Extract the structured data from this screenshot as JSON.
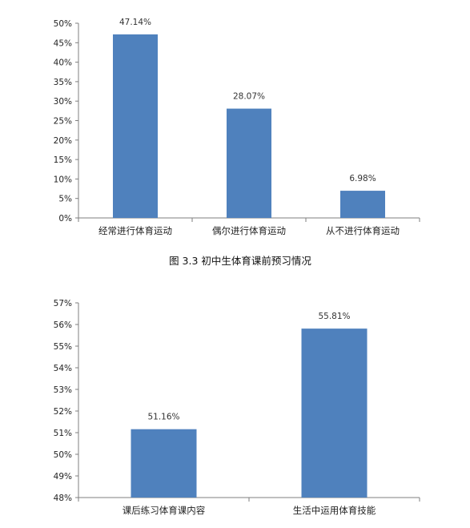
{
  "bar_color": "#4f81bd",
  "axis_color": "#7f7f7f",
  "charts": [
    {
      "caption": "图 3.3  初中生体育课前预习情况"
    },
    {
      "caption": ""
    }
  ],
  "chart_data": [
    {
      "type": "bar",
      "title": "",
      "categories": [
        "经常进行体育运动",
        "偶尔进行体育运动",
        "从不进行体育运动"
      ],
      "values": [
        47.14,
        28.07,
        6.98
      ],
      "data_labels": [
        "47.14%",
        "28.07%",
        "6.98%"
      ],
      "ylim": [
        0,
        50
      ],
      "yticks": [
        "0%",
        "5%",
        "10%",
        "15%",
        "20%",
        "25%",
        "30%",
        "35%",
        "40%",
        "45%",
        "50%"
      ],
      "grid": false,
      "legend": "none"
    },
    {
      "type": "bar",
      "title": "",
      "categories": [
        "课后练习体育课内容",
        "生活中运用体育技能"
      ],
      "values": [
        51.16,
        55.81
      ],
      "data_labels": [
        "51.16%",
        "55.81%"
      ],
      "ylim": [
        48,
        57
      ],
      "yticks": [
        "48%",
        "49%",
        "50%",
        "51%",
        "52%",
        "53%",
        "54%",
        "55%",
        "56%",
        "57%"
      ],
      "grid": false,
      "legend": "none"
    }
  ]
}
